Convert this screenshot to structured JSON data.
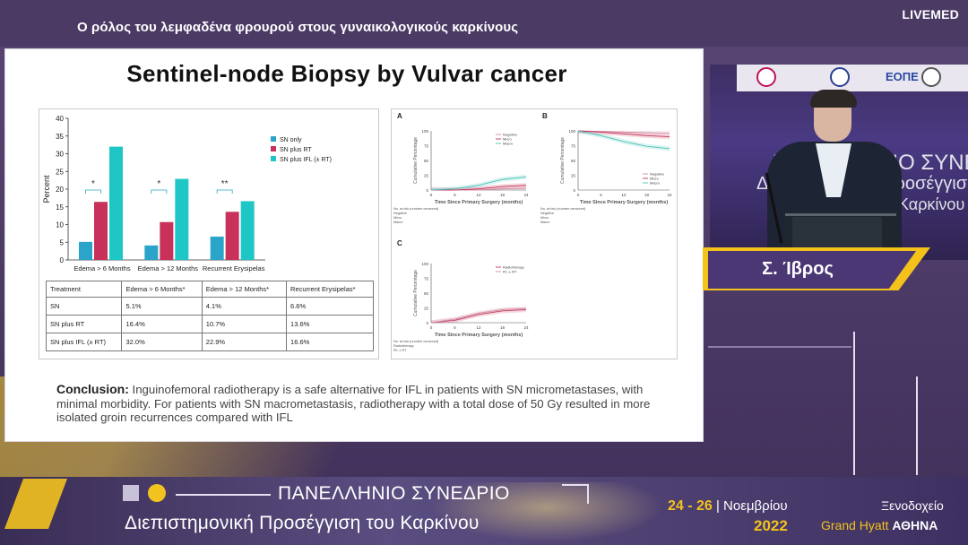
{
  "header": {
    "session_title": "Ο ρόλος του λεμφαδένα φρουρού στους γυναικολογικούς καρκίνους",
    "brand": "LIVEMED"
  },
  "slide": {
    "title": "Sentinel-node Biopsy by Vulvar cancer",
    "conclusion_label": "Conclusion:",
    "conclusion_text": " Inguinofemoral radiotherapy is a safe alternative for IFL in patients with SN micrometastases, with minimal morbidity. For patients with SN macrometastasis, radiotherapy with a total dose of 50 Gy resulted in more isolated groin recurrences compared with IFL",
    "table": {
      "headers": [
        "Treatment",
        "Edema > 6 Months*",
        "Edema > 12 Months*",
        "Recurrent Erysipelas*"
      ],
      "rows": [
        [
          "SN",
          "5.1%",
          "4.1%",
          "6.6%"
        ],
        [
          "SN plus RT",
          "16.4%",
          "10.7%",
          "13.6%"
        ],
        [
          "SN plus IFL (± RT)",
          "32.0%",
          "22.9%",
          "16.6%"
        ]
      ]
    }
  },
  "chart_data": [
    {
      "type": "bar",
      "ylabel": "Percent",
      "ylim": [
        0,
        40
      ],
      "yticks": [
        0,
        5,
        10,
        15,
        20,
        25,
        30,
        35,
        40
      ],
      "categories": [
        "Edema > 6 Months",
        "Edema > 12 Months",
        "Recurrent Erysipelas"
      ],
      "series": [
        {
          "name": "SN only",
          "color": "#2aa5c9",
          "values": [
            5.1,
            4.1,
            6.6
          ]
        },
        {
          "name": "SN plus RT",
          "color": "#c8325a",
          "values": [
            16.4,
            10.7,
            13.6
          ]
        },
        {
          "name": "SN plus IFL (± RT)",
          "color": "#1fc6c6",
          "values": [
            32.0,
            22.9,
            16.6
          ]
        }
      ],
      "annotations": [
        "*",
        "*",
        "**"
      ],
      "legend": "top-right"
    },
    {
      "type": "line",
      "panel": "A",
      "ylabel": "Cumulative Percentage",
      "xlabel": "Time Since Primary Surgery (months)",
      "xticks": [
        0,
        6,
        12,
        18,
        24
      ],
      "yticks": [
        0,
        25,
        50,
        75,
        100
      ],
      "legend": [
        "Negative",
        "Micro",
        "Macro"
      ]
    },
    {
      "type": "line",
      "panel": "B",
      "ylabel": "Cumulative Percentage",
      "xlabel": "Time Since Primary Surgery (months)",
      "xticks": [
        0,
        6,
        12,
        18,
        24
      ],
      "yticks": [
        0,
        25,
        50,
        75,
        100
      ],
      "legend": [
        "Negative",
        "Micro",
        "Macro"
      ]
    },
    {
      "type": "line",
      "panel": "C",
      "ylabel": "Cumulative Percentage",
      "xlabel": "Time Since Primary Surgery (months)",
      "xticks": [
        0,
        6,
        12,
        18,
        24
      ],
      "yticks": [
        0,
        25,
        50,
        75,
        100
      ],
      "legend": [
        "Radiotherapy",
        "IFL ± RT"
      ]
    }
  ],
  "km_labels": {
    "at_risk": "No. at risk (number censored)",
    "a_rows": [
      "Negative",
      "Micro",
      "Macro"
    ],
    "c_rows": [
      "Radiotherapy",
      "IFL ± RT"
    ]
  },
  "speaker": {
    "name": "Σ. Ίβρος",
    "screen_text_1": "ΠΑΝΕΛΛΗΝΙΟ ΣΥΝΕΔΡΙΟ",
    "screen_text_2": "Διεπιστημονική Προσέγγιση",
    "screen_text_3": "Καρκίνου",
    "banner_text": "ΕΟΠΕ"
  },
  "conference": {
    "title_1": "ΠΑΝΕΛΛΗΝΙΟ ΣΥΝΕΔΡΙΟ",
    "title_2": "Διεπιστημονική Προσέγγιση του Καρκίνου",
    "dates_num": "24 - 26",
    "dates_month": " Νοεμβρίου",
    "year": "2022",
    "venue_1": "Ξενοδοχείο",
    "venue_2_prefix": "Grand Hyatt ",
    "venue_2_bold": "ΑΘΗΝΑ"
  }
}
